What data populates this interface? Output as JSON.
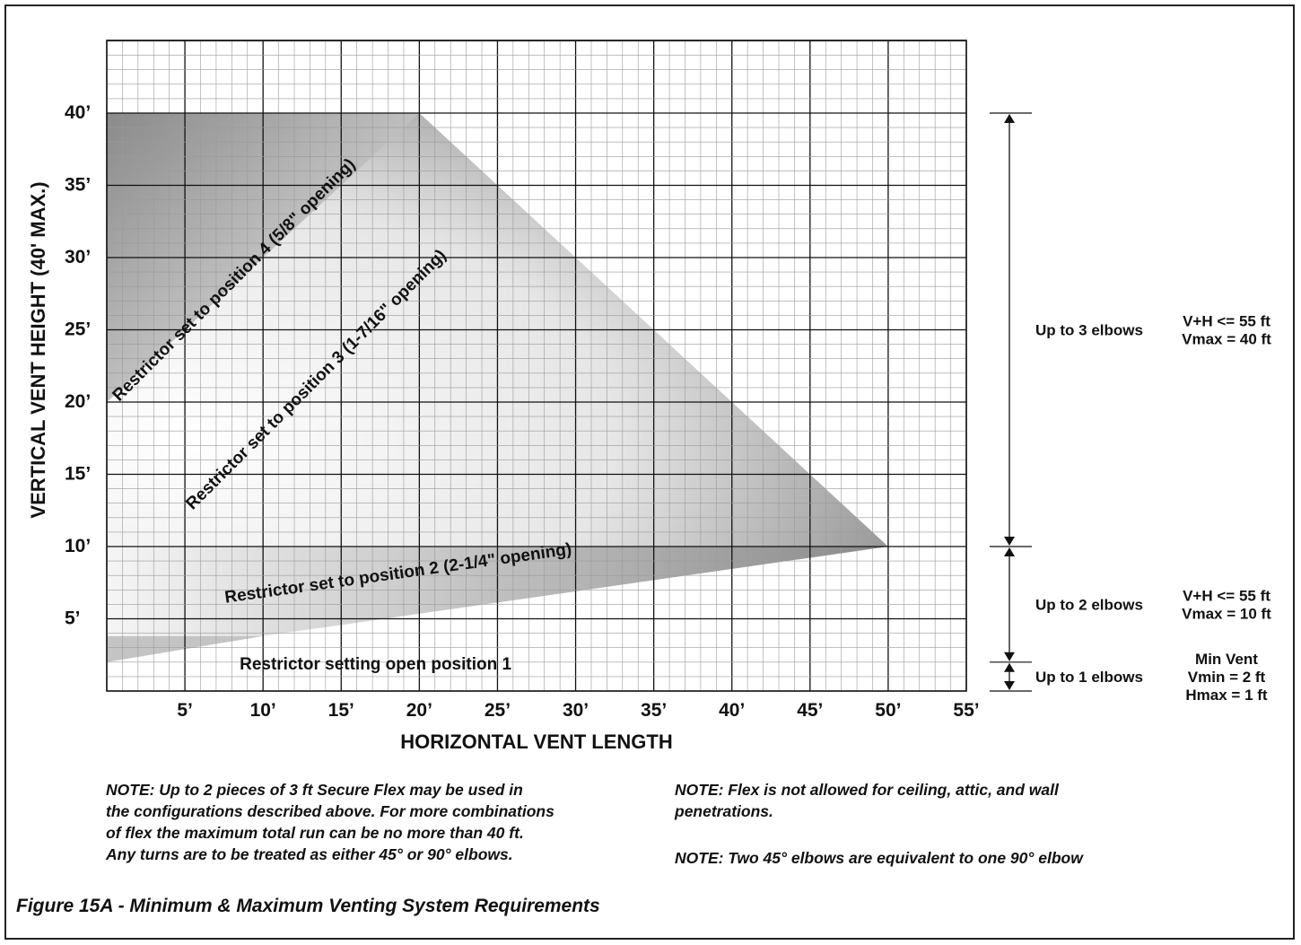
{
  "chart_data": {
    "type": "area",
    "xlabel": "HORIZONTAL VENT LENGTH",
    "ylabel": "VERTICAL VENT HEIGHT (40' MAX.)",
    "xlim": [
      0,
      55
    ],
    "ylim": [
      0,
      40
    ],
    "x_ticks": [
      5,
      10,
      15,
      20,
      25,
      30,
      35,
      40,
      45,
      50,
      55
    ],
    "y_ticks": [
      5,
      10,
      15,
      20,
      25,
      30,
      35,
      40
    ],
    "x_tick_labels": [
      "5’",
      "10’",
      "15’",
      "20’",
      "25’",
      "30’",
      "35’",
      "40’",
      "45’",
      "50’",
      "55’"
    ],
    "y_tick_labels": [
      "5’",
      "10’",
      "15’",
      "20’",
      "25’",
      "30’",
      "35’",
      "40’"
    ],
    "grid": true,
    "regions": [
      {
        "name": "Restrictor setting open position 1",
        "polygon": [
          [
            0,
            2
          ],
          [
            0,
            3.8
          ],
          [
            10,
            3.8
          ]
        ]
      },
      {
        "name": "Restrictor set to position 2 (2-1/4\" opening)",
        "polygon": [
          [
            0,
            3.8
          ],
          [
            10,
            3.8
          ],
          [
            50,
            10
          ],
          [
            0,
            10
          ]
        ]
      },
      {
        "name": "Restrictor set to position 3 (1-7/16\" opening)",
        "polygon": [
          [
            0,
            10
          ],
          [
            50,
            10
          ],
          [
            20,
            40
          ],
          [
            0,
            40
          ]
        ]
      },
      {
        "name": "Restrictor set to position 4 (5/8\" opening)",
        "polygon": [
          [
            0,
            20
          ],
          [
            20,
            40
          ],
          [
            0,
            40
          ]
        ]
      }
    ],
    "region_labels": [
      {
        "text": "Restrictor set to position 4 (5/8\" opening)",
        "x": 0.8,
        "y": 20,
        "angle_deg": 45
      },
      {
        "text": "Restrictor set to position 3 (1-7/16\" opening)",
        "x": 5.5,
        "y": 12.5,
        "angle_deg": 45
      },
      {
        "text": "Restrictor set to position 2 (2-1/4\" opening)",
        "x": 7.6,
        "y": 6.1,
        "angle_deg": 8
      },
      {
        "text": "Restrictor setting open position 1",
        "x": 8.5,
        "y": 1.5,
        "angle_deg": 0
      }
    ],
    "brackets": [
      {
        "from": 10,
        "to": 40,
        "label": "Up to 3 elbows",
        "note": [
          "V+H <= 55 ft",
          "Vmax = 40 ft"
        ]
      },
      {
        "from": 2,
        "to": 10,
        "label": "Up to 2 elbows",
        "note": [
          "V+H <= 55 ft",
          "Vmax = 10 ft"
        ]
      },
      {
        "from": 0,
        "to": 2,
        "label": "Up to 1 elbows",
        "note": [
          "Min Vent",
          "Vmin = 2 ft",
          "Hmax = 1 ft"
        ]
      }
    ]
  },
  "notes": {
    "left": [
      "NOTE:  Up to 2 pieces of 3 ft Secure Flex may be used in",
      "the configurations described above. For more combinations",
      "of flex the maximum total run can be no more than 40 ft.",
      "Any turns are to be treated as either 45° or 90° elbows."
    ],
    "right1": [
      "NOTE:  Flex is not allowed for ceiling, attic, and wall",
      "penetrations."
    ],
    "right2": "NOTE: Two 45° elbows are equivalent to one 90° elbow"
  },
  "caption": "Figure 15A - Minimum & Maximum Venting System Requirements"
}
